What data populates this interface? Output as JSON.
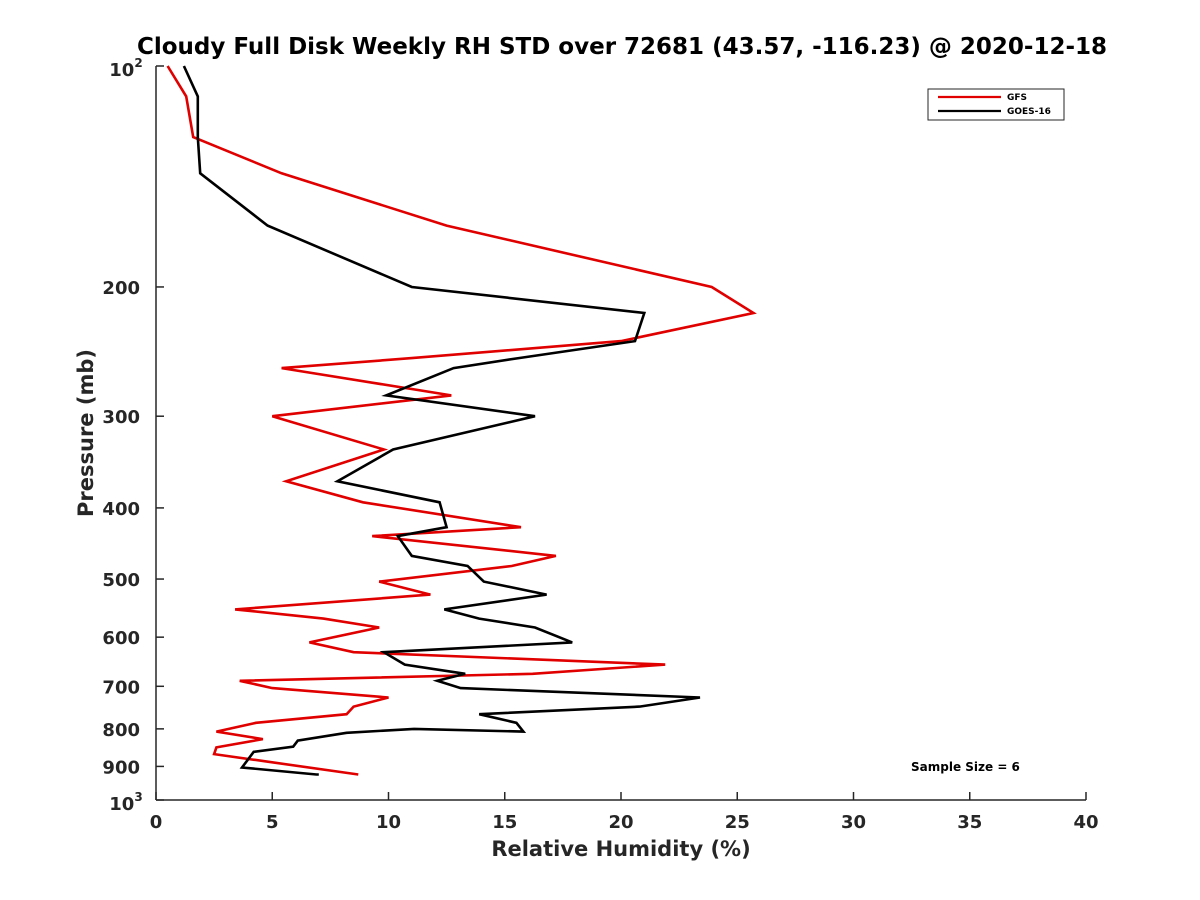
{
  "chart_data": {
    "type": "line",
    "title": "Cloudy Full Disk Weekly RH STD over 72681 (43.57, -116.23) @ 2020-12-18",
    "xlabel": "Relative Humidity (%)",
    "ylabel": "Pressure (mb)",
    "xlim": [
      0,
      40
    ],
    "ylim": [
      100,
      1000
    ],
    "y_scale": "log",
    "y_reversed": true,
    "grid": false,
    "legend_position": "top-right",
    "x_ticks": [
      0,
      5,
      10,
      15,
      20,
      25,
      30,
      35,
      40
    ],
    "y_ticks": [
      200,
      300,
      400,
      500,
      600,
      700,
      800,
      900
    ],
    "y_tick_labels": [
      "200",
      "300",
      "400",
      "500",
      "600",
      "700",
      "800",
      "900"
    ],
    "y_end_labels": {
      "top_base": "10",
      "top_exp": "2",
      "bottom_base": "10",
      "bottom_exp": "3"
    },
    "series": [
      {
        "name": "GFS",
        "color": "#e00000",
        "x": [
          0.5,
          1.3,
          1.6,
          5.4,
          12.5,
          23.9,
          25.7,
          20.0,
          11.0,
          5.4,
          12.7,
          5.0,
          9.8,
          5.6,
          8.9,
          15.7,
          9.3,
          17.2,
          15.3,
          9.6,
          11.8,
          3.4,
          7.2,
          9.6,
          6.6,
          8.5,
          21.9,
          16.2,
          3.6,
          5.0,
          10.0,
          8.5,
          8.2,
          4.3,
          2.6,
          4.6,
          2.6,
          2.5,
          8.7
        ],
        "y": [
          100,
          110,
          125,
          140,
          165,
          200,
          217,
          237,
          250,
          258,
          281,
          300,
          333,
          368,
          393,
          425,
          437,
          465,
          480,
          504,
          525,
          550,
          566,
          582,
          610,
          629,
          654,
          673,
          688,
          704,
          725,
          746,
          764,
          785,
          807,
          826,
          848,
          866,
          923
        ]
      },
      {
        "name": "GOES-16",
        "color": "#000000",
        "x": [
          1.2,
          1.8,
          1.8,
          1.9,
          4.8,
          11.0,
          21.0,
          20.6,
          15.6,
          12.8,
          9.9,
          16.3,
          10.2,
          7.8,
          12.2,
          12.5,
          10.4,
          11.0,
          13.4,
          14.1,
          16.8,
          12.4,
          13.9,
          16.3,
          17.9,
          9.8,
          10.7,
          13.3,
          12.1,
          13.1,
          23.4,
          20.8,
          13.9,
          15.5,
          15.8,
          11.1,
          8.2,
          6.1,
          5.9,
          4.2,
          3.7,
          6.9,
          7.0
        ]
      }
    ]
  },
  "legend": {
    "items": [
      {
        "label": "GFS",
        "color": "#e00000"
      },
      {
        "label": "GOES-16",
        "color": "#000000"
      }
    ]
  },
  "annotation": "Sample Size = 6"
}
